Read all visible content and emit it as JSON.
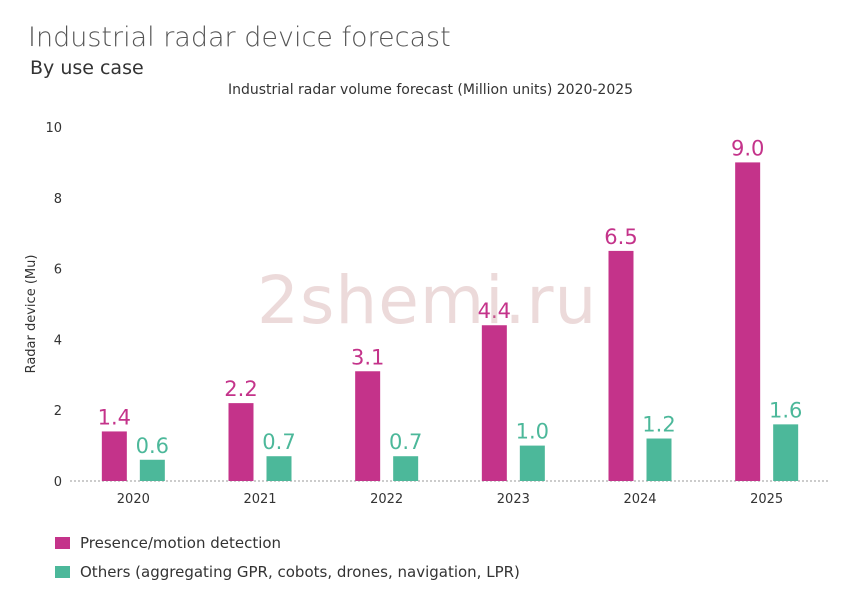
{
  "header": {
    "title": "Industrial radar device forecast",
    "subtitle": "By use case",
    "chart_title": "Industrial radar volume forecast (Million units) 2020-2025"
  },
  "watermark": "2shemi.ru",
  "chart_data": {
    "type": "bar",
    "title": "Industrial radar volume forecast (Million units) 2020-2025",
    "xlabel": "",
    "ylabel": "Radar device (Mu)",
    "ylim": [
      0,
      10
    ],
    "yticks": [
      0,
      2,
      4,
      6,
      8,
      10
    ],
    "grid": false,
    "legend_position": "bottom-left",
    "categories": [
      "2020",
      "2021",
      "2022",
      "2023",
      "2024",
      "2025"
    ],
    "series": [
      {
        "name": "Presence/motion detection",
        "color": "#c4338a",
        "values": [
          1.4,
          2.2,
          3.1,
          4.4,
          6.5,
          9.0
        ],
        "labels": [
          "1.4",
          "2.2",
          "3.1",
          "4.4",
          "6.5",
          "9.0"
        ]
      },
      {
        "name": "Others (aggregating GPR, cobots, drones, navigation, LPR)",
        "color": "#4cb89a",
        "values": [
          0.6,
          0.7,
          0.7,
          1.0,
          1.2,
          1.6
        ],
        "labels": [
          "0.6",
          "0.7",
          "0.7",
          "1.0",
          "1.2",
          "1.6"
        ]
      }
    ]
  }
}
